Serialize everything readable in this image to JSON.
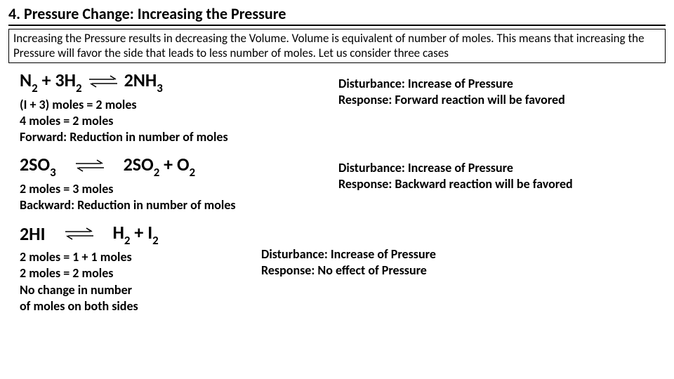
{
  "title": "4. Pressure Change: Increasing the Pressure",
  "intro": "Increasing the Pressure  results in decreasing the Volume. Volume is equivalent of number of moles. This means that increasing the Pressure will favor the side that leads to less number of moles. Let us consider three cases",
  "cases": [
    {
      "eq": {
        "lhs_html": "N<sub>2</sub> + 3H<sub>2</sub>",
        "rhs_html": "2NH<sub>3</sub>"
      },
      "notes": [
        "(I + 3)  moles  = 2  moles",
        "4 moles = 2 moles",
        "Forward: Reduction in number of moles"
      ],
      "disturbance": "Disturbance: Increase of Pressure",
      "response": "Response: Forward reaction will be favored"
    },
    {
      "eq": {
        "lhs_html": "2SO<sub>3</sub>",
        "rhs_html": "2SO<sub>2</sub> +   O<sub>2</sub>"
      },
      "notes": [
        "2 moles  = 3  moles",
        "Backward: Reduction in number of moles"
      ],
      "disturbance": "Disturbance: Increase of Pressure",
      "response": "Response: Backward reaction will be favored"
    },
    {
      "eq": {
        "lhs_html": "2HI",
        "rhs_html": "H<sub>2</sub> + I<sub>2</sub>"
      },
      "notes": [
        "2 moles  = 1 + 1 moles",
        "2 moles = 2 moles",
        "No change in number",
        "of moles on both sides"
      ],
      "disturbance": "Disturbance: Increase of Pressure",
      "response": "Response: No effect of Pressure"
    }
  ],
  "colors": {
    "text": "#000000",
    "bg": "#ffffff",
    "border": "#000000"
  },
  "fontsize": {
    "title": 22,
    "intro": 17,
    "equation": 26,
    "body": 18
  }
}
